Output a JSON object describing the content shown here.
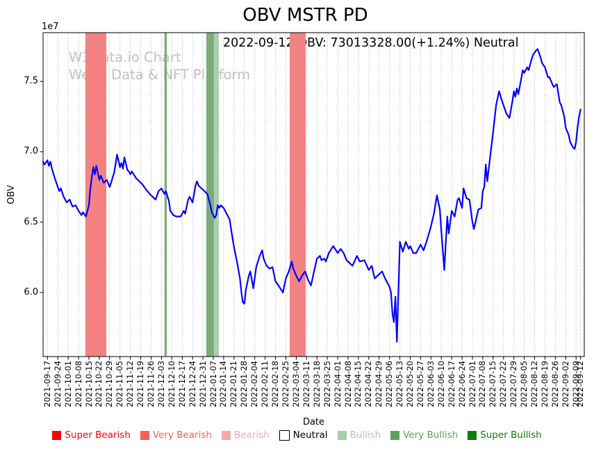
{
  "title": "OBV MSTR PD",
  "annotation": "2022-09-12 OBV: 73013328.00(+1.24%) Neutral",
  "watermark": {
    "line1": "W3Data.io Chart",
    "line2": "Web3 Data & NFT Platform"
  },
  "legend": {
    "items": [
      {
        "label": "Super Bearish",
        "color": "#ff0000",
        "text_color": "#ff0000"
      },
      {
        "label": "Very Bearish",
        "color": "#ff5c5c",
        "text_color": "#ff5c5c"
      },
      {
        "label": "Bearish",
        "color": "#f5a9a9",
        "text_color": "#f5a9a9"
      },
      {
        "label": "Neutral",
        "color": "#ffffff",
        "text_color": "#000000",
        "border": "#000000"
      },
      {
        "label": "Bullish",
        "color": "#a8cda8",
        "text_color": "#a8cda8"
      },
      {
        "label": "Very Bullish",
        "color": "#58a358",
        "text_color": "#58a358"
      },
      {
        "label": "Super Bullish",
        "color": "#008000",
        "text_color": "#0b800b"
      }
    ]
  },
  "chart_data": {
    "type": "line",
    "title": "OBV MSTR PD",
    "xlabel": "Date",
    "ylabel": "OBV",
    "y_offset_label": "1e7",
    "value_unit": "1e7",
    "ylim": [
      5.545,
      7.846
    ],
    "y_ticks": [
      {
        "label": "6.0",
        "value": 6.0
      },
      {
        "label": "6.5",
        "value": 6.5
      },
      {
        "label": "7.0",
        "value": 7.0
      },
      {
        "label": "7.5",
        "value": 7.5
      }
    ],
    "grid": "vertical dotted weekly gridlines",
    "legend_position": "bottom center",
    "x_ticks": [
      {
        "label": "2021-09-17",
        "day": 0
      },
      {
        "label": "2021-09-24",
        "day": 7
      },
      {
        "label": "2021-10-01",
        "day": 14
      },
      {
        "label": "2021-10-08",
        "day": 21
      },
      {
        "label": "2021-10-15",
        "day": 28
      },
      {
        "label": "2021-10-22",
        "day": 35
      },
      {
        "label": "2021-10-29",
        "day": 42
      },
      {
        "label": "2021-11-05",
        "day": 49
      },
      {
        "label": "2021-11-12",
        "day": 56
      },
      {
        "label": "2021-11-19",
        "day": 63
      },
      {
        "label": "2021-11-26",
        "day": 70
      },
      {
        "label": "2021-12-03",
        "day": 77
      },
      {
        "label": "2021-12-10",
        "day": 84
      },
      {
        "label": "2021-12-17",
        "day": 91
      },
      {
        "label": "2021-12-24",
        "day": 98
      },
      {
        "label": "2021-12-31",
        "day": 105
      },
      {
        "label": "2022-01-07",
        "day": 112
      },
      {
        "label": "2022-01-14",
        "day": 119
      },
      {
        "label": "2022-01-21",
        "day": 126
      },
      {
        "label": "2022-01-28",
        "day": 133
      },
      {
        "label": "2022-02-04",
        "day": 140
      },
      {
        "label": "2022-02-11",
        "day": 147
      },
      {
        "label": "2022-02-18",
        "day": 154
      },
      {
        "label": "2022-02-25",
        "day": 161
      },
      {
        "label": "2022-03-04",
        "day": 168
      },
      {
        "label": "2022-03-11",
        "day": 175
      },
      {
        "label": "2022-03-18",
        "day": 182
      },
      {
        "label": "2022-03-25",
        "day": 189
      },
      {
        "label": "2022-04-01",
        "day": 196
      },
      {
        "label": "2022-04-08",
        "day": 203
      },
      {
        "label": "2022-04-15",
        "day": 210
      },
      {
        "label": "2022-04-22",
        "day": 217
      },
      {
        "label": "2022-04-29",
        "day": 224
      },
      {
        "label": "2022-05-06",
        "day": 231
      },
      {
        "label": "2022-05-13",
        "day": 238
      },
      {
        "label": "2022-05-20",
        "day": 245
      },
      {
        "label": "2022-05-27",
        "day": 252
      },
      {
        "label": "2022-06-03",
        "day": 259
      },
      {
        "label": "2022-06-10",
        "day": 266
      },
      {
        "label": "2022-06-17",
        "day": 273
      },
      {
        "label": "2022-06-24",
        "day": 280
      },
      {
        "label": "2022-07-01",
        "day": 287
      },
      {
        "label": "2022-07-08",
        "day": 294
      },
      {
        "label": "2022-07-15",
        "day": 301
      },
      {
        "label": "2022-07-22",
        "day": 308
      },
      {
        "label": "2022-07-29",
        "day": 315
      },
      {
        "label": "2022-08-05",
        "day": 322
      },
      {
        "label": "2022-08-12",
        "day": 329
      },
      {
        "label": "2022-08-19",
        "day": 336
      },
      {
        "label": "2022-08-26",
        "day": 343
      },
      {
        "label": "2022-09-02",
        "day": 350
      },
      {
        "label": "2022-09-09",
        "day": 357
      },
      {
        "label": "2022-09-12",
        "day": 360
      }
    ],
    "signal_bands": [
      {
        "signal": "Very Bearish",
        "from_day": 25.5,
        "to_day": 39.7,
        "color": "#f58282"
      },
      {
        "signal": "Very Bullish",
        "from_day": 79,
        "to_day": 80.6,
        "color": "#7cac7c"
      },
      {
        "signal": "Very Bullish",
        "from_day": 107.3,
        "to_day": 112.5,
        "color": "#7cac7c"
      },
      {
        "signal": "Bullish",
        "from_day": 112.5,
        "to_day": 115.8,
        "color": "#abceab"
      },
      {
        "signal": "Very Bearish",
        "from_day": 163.6,
        "to_day": 174.4,
        "color": "#f58282"
      }
    ],
    "series": [
      {
        "name": "OBV",
        "color": "#0000ff",
        "points": [
          [
            -3,
            6.93
          ],
          [
            -2,
            6.91
          ],
          [
            0,
            6.94
          ],
          [
            1,
            6.9
          ],
          [
            2,
            6.93
          ],
          [
            3,
            6.88
          ],
          [
            5,
            6.81
          ],
          [
            7,
            6.75
          ],
          [
            8,
            6.72
          ],
          [
            9,
            6.74
          ],
          [
            11,
            6.68
          ],
          [
            13,
            6.64
          ],
          [
            15,
            6.66
          ],
          [
            17,
            6.61
          ],
          [
            19,
            6.62
          ],
          [
            21,
            6.58
          ],
          [
            23,
            6.55
          ],
          [
            24,
            6.57
          ],
          [
            26,
            6.54
          ],
          [
            28,
            6.62
          ],
          [
            29,
            6.74
          ],
          [
            30,
            6.82
          ],
          [
            31,
            6.89
          ],
          [
            32,
            6.84
          ],
          [
            33,
            6.9
          ],
          [
            34,
            6.85
          ],
          [
            35,
            6.8
          ],
          [
            36,
            6.83
          ],
          [
            38,
            6.78
          ],
          [
            40,
            6.8
          ],
          [
            42,
            6.75
          ],
          [
            43,
            6.78
          ],
          [
            45,
            6.85
          ],
          [
            46,
            6.91
          ],
          [
            47,
            6.98
          ],
          [
            49,
            6.89
          ],
          [
            50,
            6.92
          ],
          [
            51,
            6.88
          ],
          [
            52,
            6.96
          ],
          [
            54,
            6.87
          ],
          [
            55,
            6.86
          ],
          [
            56,
            6.84
          ],
          [
            57,
            6.86
          ],
          [
            60,
            6.81
          ],
          [
            62,
            6.79
          ],
          [
            64,
            6.77
          ],
          [
            66,
            6.74
          ],
          [
            69,
            6.7
          ],
          [
            71,
            6.68
          ],
          [
            73,
            6.66
          ],
          [
            75,
            6.72
          ],
          [
            77,
            6.74
          ],
          [
            79,
            6.7
          ],
          [
            80,
            6.72
          ],
          [
            82,
            6.65
          ],
          [
            83,
            6.58
          ],
          [
            85,
            6.55
          ],
          [
            87,
            6.54
          ],
          [
            90,
            6.54
          ],
          [
            92,
            6.58
          ],
          [
            93,
            6.56
          ],
          [
            95,
            6.66
          ],
          [
            96,
            6.68
          ],
          [
            98,
            6.64
          ],
          [
            100,
            6.76
          ],
          [
            101,
            6.79
          ],
          [
            102,
            6.76
          ],
          [
            104,
            6.74
          ],
          [
            106,
            6.72
          ],
          [
            108,
            6.7
          ],
          [
            110,
            6.62
          ],
          [
            111,
            6.57
          ],
          [
            113,
            6.53
          ],
          [
            114,
            6.55
          ],
          [
            115,
            6.62
          ],
          [
            116,
            6.6
          ],
          [
            117,
            6.62
          ],
          [
            119,
            6.6
          ],
          [
            121,
            6.56
          ],
          [
            123,
            6.52
          ],
          [
            124,
            6.45
          ],
          [
            126,
            6.32
          ],
          [
            128,
            6.22
          ],
          [
            130,
            6.1
          ],
          [
            131,
            6.0
          ],
          [
            132,
            5.93
          ],
          [
            133,
            5.92
          ],
          [
            134,
            6.02
          ],
          [
            136,
            6.12
          ],
          [
            137,
            6.15
          ],
          [
            139,
            6.03
          ],
          [
            141,
            6.18
          ],
          [
            143,
            6.25
          ],
          [
            145,
            6.3
          ],
          [
            146,
            6.24
          ],
          [
            148,
            6.19
          ],
          [
            150,
            6.17
          ],
          [
            152,
            6.18
          ],
          [
            154,
            6.08
          ],
          [
            156,
            6.05
          ],
          [
            159,
            6.0
          ],
          [
            161,
            6.1
          ],
          [
            163,
            6.15
          ],
          [
            165,
            6.22
          ],
          [
            166,
            6.17
          ],
          [
            168,
            6.12
          ],
          [
            170,
            6.08
          ],
          [
            172,
            6.12
          ],
          [
            174,
            6.15
          ],
          [
            176,
            6.09
          ],
          [
            178,
            6.05
          ],
          [
            180,
            6.15
          ],
          [
            182,
            6.24
          ],
          [
            184,
            6.26
          ],
          [
            185,
            6.23
          ],
          [
            187,
            6.24
          ],
          [
            188,
            6.22
          ],
          [
            190,
            6.28
          ],
          [
            193,
            6.33
          ],
          [
            196,
            6.28
          ],
          [
            198,
            6.31
          ],
          [
            200,
            6.28
          ],
          [
            202,
            6.23
          ],
          [
            206,
            6.19
          ],
          [
            209,
            6.26
          ],
          [
            211,
            6.22
          ],
          [
            214,
            6.23
          ],
          [
            217,
            6.16
          ],
          [
            219,
            6.19
          ],
          [
            221,
            6.1
          ],
          [
            223,
            6.12
          ],
          [
            226,
            6.15
          ],
          [
            228,
            6.1
          ],
          [
            231,
            6.04
          ],
          [
            232,
            6.0
          ],
          [
            233,
            5.85
          ],
          [
            234,
            5.79
          ],
          [
            235,
            5.97
          ],
          [
            236,
            5.65
          ],
          [
            238,
            6.36
          ],
          [
            240,
            6.29
          ],
          [
            242,
            6.36
          ],
          [
            244,
            6.31
          ],
          [
            245,
            6.33
          ],
          [
            247,
            6.28
          ],
          [
            249,
            6.28
          ],
          [
            252,
            6.34
          ],
          [
            254,
            6.3
          ],
          [
            256,
            6.36
          ],
          [
            259,
            6.47
          ],
          [
            261,
            6.56
          ],
          [
            263,
            6.69
          ],
          [
            265,
            6.59
          ],
          [
            266,
            6.44
          ],
          [
            268,
            6.16
          ],
          [
            270,
            6.54
          ],
          [
            271,
            6.42
          ],
          [
            273,
            6.58
          ],
          [
            275,
            6.54
          ],
          [
            277,
            6.66
          ],
          [
            278,
            6.67
          ],
          [
            280,
            6.6
          ],
          [
            281,
            6.74
          ],
          [
            283,
            6.67
          ],
          [
            285,
            6.66
          ],
          [
            287,
            6.5
          ],
          [
            288,
            6.45
          ],
          [
            291,
            6.59
          ],
          [
            293,
            6.6
          ],
          [
            294,
            6.72
          ],
          [
            295,
            6.75
          ],
          [
            296,
            6.91
          ],
          [
            297,
            6.79
          ],
          [
            298,
            6.88
          ],
          [
            301,
            7.14
          ],
          [
            303,
            7.33
          ],
          [
            305,
            7.43
          ],
          [
            307,
            7.36
          ],
          [
            310,
            7.27
          ],
          [
            312,
            7.24
          ],
          [
            314,
            7.36
          ],
          [
            315,
            7.43
          ],
          [
            316,
            7.39
          ],
          [
            317,
            7.45
          ],
          [
            318,
            7.41
          ],
          [
            320,
            7.52
          ],
          [
            321,
            7.58
          ],
          [
            322,
            7.56
          ],
          [
            324,
            7.6
          ],
          [
            325,
            7.58
          ],
          [
            327,
            7.66
          ],
          [
            328,
            7.69
          ],
          [
            330,
            7.72
          ],
          [
            331,
            7.73
          ],
          [
            333,
            7.67
          ],
          [
            334,
            7.63
          ],
          [
            336,
            7.6
          ],
          [
            338,
            7.53
          ],
          [
            339,
            7.53
          ],
          [
            341,
            7.48
          ],
          [
            342,
            7.46
          ],
          [
            344,
            7.48
          ],
          [
            346,
            7.35
          ],
          [
            347,
            7.33
          ],
          [
            349,
            7.25
          ],
          [
            350,
            7.17
          ],
          [
            352,
            7.12
          ],
          [
            353,
            7.07
          ],
          [
            355,
            7.03
          ],
          [
            356,
            7.02
          ],
          [
            357,
            7.07
          ],
          [
            358,
            7.17
          ],
          [
            359,
            7.25
          ],
          [
            360,
            7.3
          ]
        ]
      }
    ]
  }
}
